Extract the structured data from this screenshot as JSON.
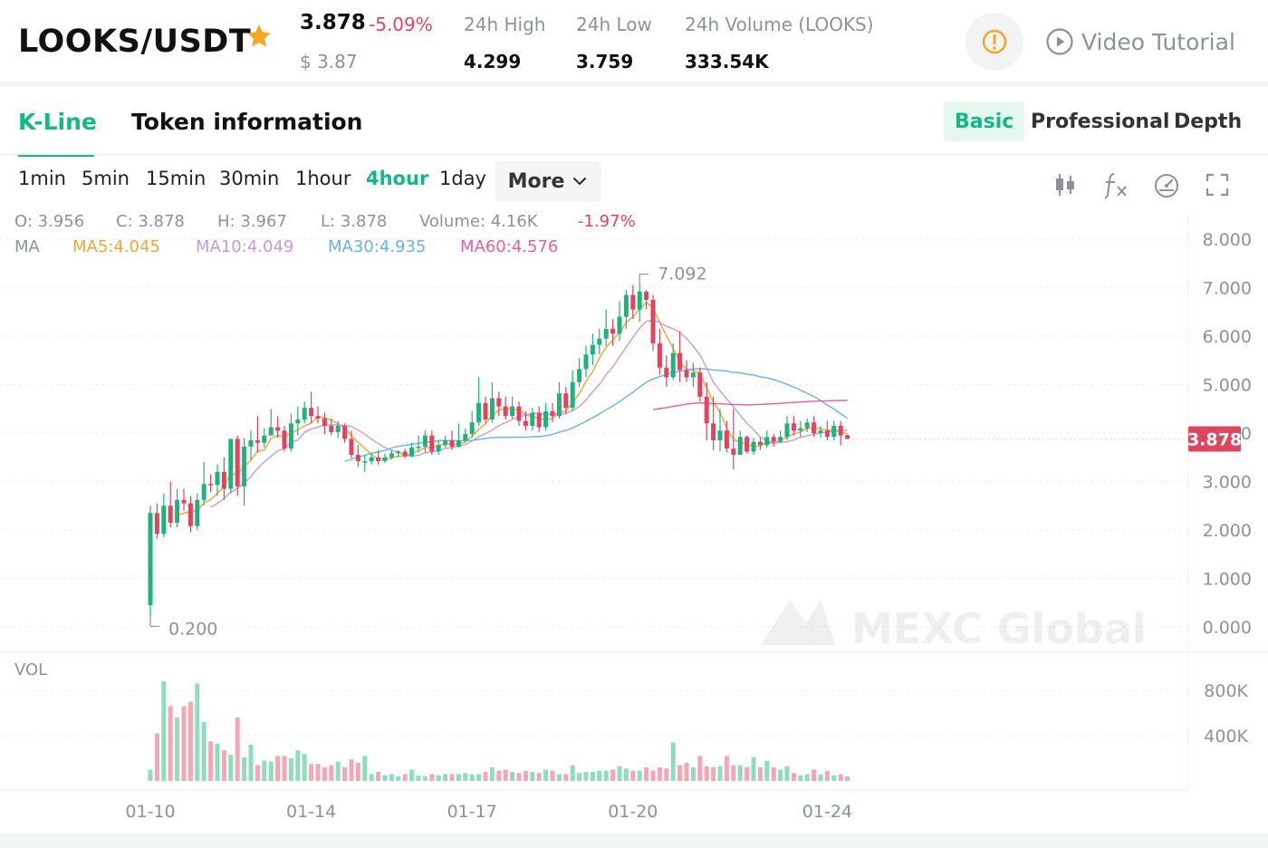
{
  "header": {
    "pair": "LOOKS/USDT",
    "price": "3.878",
    "change": "-5.09%",
    "usd_price": "$ 3.87",
    "stats": [
      {
        "label": "24h High",
        "value": "4.299"
      },
      {
        "label": "24h Low",
        "value": "3.759"
      },
      {
        "label": "24h Volume (LOOKS)",
        "value": "333.54K"
      }
    ],
    "video_tutorial": "Video Tutorial"
  },
  "tabs": [
    {
      "label": "K-Line",
      "active": true
    },
    {
      "label": "Token information",
      "active": false
    }
  ],
  "modes": [
    "Basic",
    "Professional",
    "Depth"
  ],
  "intervals": [
    "1min",
    "5min",
    "15min",
    "30min",
    "1hour",
    "4hour",
    "1day"
  ],
  "active_interval": "4hour",
  "more_label": "More",
  "ohlc": {
    "o": "O: 3.956",
    "c": "C: 3.878",
    "h": "H: 3.967",
    "l": "L: 3.878",
    "volume": "Volume: 4.16K",
    "change": "-1.97%"
  },
  "ma": {
    "label": "MA",
    "ma5": "MA5:4.045",
    "ma10": "MA10:4.049",
    "ma30": "MA30:4.935",
    "ma60": "MA60:4.576"
  },
  "colors": {
    "up": "#1fb27c",
    "down": "#e0455f",
    "accent": "#12b886",
    "ma5": "#f0a53a",
    "ma10": "#c49ae0",
    "ma30": "#6cb0ea",
    "ma60": "#e8609a",
    "star": "#f5a623"
  },
  "watermark": "MEXC Global",
  "chart_data": {
    "type": "candlestick",
    "price_axis": [
      "8.000",
      "7.000",
      "6.000",
      "5.000",
      "4.000",
      "3.000",
      "2.000",
      "1.000",
      "0.000"
    ],
    "current_price_label": "3.878",
    "high_marker": "7.092",
    "low_marker": "0.200",
    "volume_label": "VOL",
    "volume_axis": [
      "800K",
      "400K"
    ],
    "x_labels": [
      "01-10",
      "01-14",
      "01-17",
      "01-20",
      "01-24"
    ],
    "candles": [
      [
        0.45,
        2.35,
        0.2,
        2.5
      ],
      [
        2.35,
        1.92,
        1.82,
        2.55
      ],
      [
        1.92,
        2.5,
        1.85,
        2.75
      ],
      [
        2.5,
        2.15,
        2.05,
        3.0
      ],
      [
        2.15,
        2.62,
        2.05,
        2.85
      ],
      [
        2.62,
        2.55,
        2.4,
        2.85
      ],
      [
        2.55,
        2.08,
        1.95,
        2.7
      ],
      [
        2.08,
        2.62,
        2.0,
        2.75
      ],
      [
        2.62,
        2.95,
        2.5,
        3.4
      ],
      [
        2.95,
        2.93,
        2.78,
        3.15
      ],
      [
        2.93,
        3.2,
        2.7,
        3.35
      ],
      [
        3.2,
        2.85,
        2.62,
        3.5
      ],
      [
        2.85,
        3.88,
        2.75,
        3.88
      ],
      [
        3.88,
        2.9,
        2.7,
        3.95
      ],
      [
        2.9,
        3.72,
        2.5,
        3.9
      ],
      [
        3.72,
        3.85,
        3.45,
        4.05
      ],
      [
        3.85,
        3.8,
        3.6,
        4.35
      ],
      [
        3.8,
        3.95,
        3.7,
        4.1
      ],
      [
        3.95,
        4.12,
        3.95,
        4.5
      ],
      [
        4.12,
        4.05,
        3.9,
        4.35
      ],
      [
        4.05,
        3.68,
        3.62,
        4.15
      ],
      [
        3.68,
        4.2,
        3.62,
        4.4
      ],
      [
        4.2,
        4.28,
        3.95,
        4.55
      ],
      [
        4.28,
        4.52,
        4.2,
        4.65
      ],
      [
        4.52,
        4.35,
        4.2,
        4.85
      ],
      [
        4.35,
        4.3,
        4.2,
        4.55
      ],
      [
        4.3,
        4.15,
        3.98,
        4.42
      ],
      [
        4.15,
        4.02,
        3.95,
        4.3
      ],
      [
        4.02,
        4.15,
        3.9,
        4.25
      ],
      [
        4.15,
        3.88,
        3.8,
        4.2
      ],
      [
        3.88,
        3.55,
        3.48,
        4.05
      ],
      [
        3.55,
        3.42,
        3.3,
        3.75
      ],
      [
        3.42,
        3.42,
        3.2,
        3.55
      ],
      [
        3.42,
        3.5,
        3.35,
        3.6
      ],
      [
        3.5,
        3.42,
        3.35,
        3.65
      ],
      [
        3.42,
        3.5,
        3.38,
        3.58
      ],
      [
        3.5,
        3.58,
        3.45,
        3.65
      ],
      [
        3.58,
        3.62,
        3.5,
        3.65
      ],
      [
        3.62,
        3.52,
        3.48,
        3.68
      ],
      [
        3.52,
        3.7,
        3.5,
        3.8
      ],
      [
        3.7,
        3.72,
        3.6,
        3.95
      ],
      [
        3.72,
        3.95,
        3.6,
        4.05
      ],
      [
        3.95,
        3.62,
        3.55,
        4.05
      ],
      [
        3.62,
        3.75,
        3.55,
        3.85
      ],
      [
        3.75,
        3.85,
        3.7,
        3.95
      ],
      [
        3.85,
        3.72,
        3.65,
        4.05
      ],
      [
        3.72,
        3.85,
        3.7,
        4.2
      ],
      [
        3.85,
        3.98,
        3.8,
        4.1
      ],
      [
        3.98,
        4.22,
        3.9,
        4.45
      ],
      [
        4.22,
        4.62,
        4.15,
        5.15
      ],
      [
        4.62,
        4.28,
        4.2,
        4.75
      ],
      [
        4.28,
        4.72,
        4.22,
        5.05
      ],
      [
        4.72,
        4.55,
        4.35,
        4.85
      ],
      [
        4.55,
        4.35,
        4.28,
        4.75
      ],
      [
        4.35,
        4.55,
        4.3,
        4.75
      ],
      [
        4.55,
        4.25,
        4.15,
        4.65
      ],
      [
        4.25,
        4.15,
        4.05,
        4.45
      ],
      [
        4.15,
        4.42,
        4.05,
        4.52
      ],
      [
        4.42,
        4.12,
        4.02,
        4.55
      ],
      [
        4.12,
        4.45,
        4.05,
        4.62
      ],
      [
        4.45,
        4.35,
        4.22,
        4.62
      ],
      [
        4.35,
        4.82,
        4.3,
        5.05
      ],
      [
        4.82,
        4.52,
        4.4,
        4.95
      ],
      [
        4.52,
        5.05,
        4.45,
        5.3
      ],
      [
        5.05,
        5.32,
        4.95,
        5.55
      ],
      [
        5.32,
        5.62,
        5.15,
        5.8
      ],
      [
        5.62,
        5.82,
        5.4,
        6.05
      ],
      [
        5.82,
        5.95,
        5.62,
        6.15
      ],
      [
        5.95,
        6.15,
        5.8,
        6.55
      ],
      [
        6.15,
        6.05,
        5.8,
        6.35
      ],
      [
        6.05,
        6.4,
        5.9,
        6.72
      ],
      [
        6.4,
        6.85,
        6.15,
        6.95
      ],
      [
        6.85,
        6.55,
        6.35,
        7.05
      ],
      [
        6.55,
        6.92,
        6.3,
        7.092
      ],
      [
        6.92,
        6.75,
        6.55,
        6.95
      ],
      [
        6.75,
        5.85,
        5.7,
        6.85
      ],
      [
        5.85,
        5.35,
        5.2,
        6.15
      ],
      [
        5.35,
        5.15,
        4.95,
        5.6
      ],
      [
        5.15,
        5.65,
        5.1,
        5.85
      ],
      [
        5.65,
        5.3,
        5.05,
        6.1
      ],
      [
        5.3,
        5.15,
        5.05,
        5.5
      ],
      [
        5.15,
        5.25,
        4.95,
        5.45
      ],
      [
        5.25,
        4.75,
        4.65,
        5.35
      ],
      [
        4.75,
        4.2,
        3.85,
        5.05
      ],
      [
        4.2,
        3.85,
        3.65,
        4.75
      ],
      [
        3.85,
        4.05,
        3.62,
        4.5
      ],
      [
        4.05,
        3.68,
        3.6,
        4.25
      ],
      [
        3.68,
        3.55,
        3.25,
        4.5
      ],
      [
        3.55,
        3.92,
        3.55,
        4.05
      ],
      [
        3.92,
        3.62,
        3.58,
        3.95
      ],
      [
        3.62,
        3.82,
        3.55,
        3.9
      ],
      [
        3.82,
        3.75,
        3.65,
        3.9
      ],
      [
        3.75,
        3.92,
        3.7,
        4.05
      ],
      [
        3.92,
        3.82,
        3.72,
        3.98
      ],
      [
        3.82,
        3.92,
        3.8,
        4.05
      ],
      [
        3.92,
        4.2,
        3.85,
        4.35
      ],
      [
        4.2,
        4.05,
        3.95,
        4.35
      ],
      [
        4.05,
        4.1,
        3.92,
        4.25
      ],
      [
        4.1,
        4.22,
        4.02,
        4.3
      ],
      [
        4.22,
        4.0,
        3.92,
        4.35
      ],
      [
        4.0,
        4.05,
        3.9,
        4.15
      ],
      [
        4.05,
        3.92,
        3.85,
        4.25
      ],
      [
        3.92,
        4.15,
        3.85,
        4.25
      ],
      [
        4.15,
        3.95,
        3.75,
        4.25
      ],
      [
        3.956,
        3.878,
        3.878,
        3.967
      ]
    ],
    "volumes": [
      100,
      420,
      880,
      660,
      560,
      660,
      700,
      860,
      520,
      350,
      330,
      270,
      230,
      560,
      210,
      320,
      140,
      180,
      170,
      220,
      220,
      200,
      270,
      240,
      150,
      150,
      120,
      140,
      170,
      120,
      190,
      160,
      220,
      60,
      80,
      50,
      60,
      40,
      60,
      100,
      50,
      40,
      60,
      50,
      60,
      60,
      60,
      70,
      60,
      60,
      80,
      120,
      90,
      100,
      80,
      70,
      90,
      80,
      70,
      100,
      90,
      60,
      60,
      140,
      70,
      80,
      80,
      90,
      90,
      100,
      130,
      110,
      90,
      90,
      120,
      90,
      120,
      110,
      340,
      140,
      160,
      120,
      220,
      130,
      120,
      130,
      220,
      140,
      140,
      120,
      210,
      120,
      180,
      120,
      100,
      130,
      70,
      50,
      60,
      100,
      60,
      90,
      50,
      60,
      40
    ]
  }
}
